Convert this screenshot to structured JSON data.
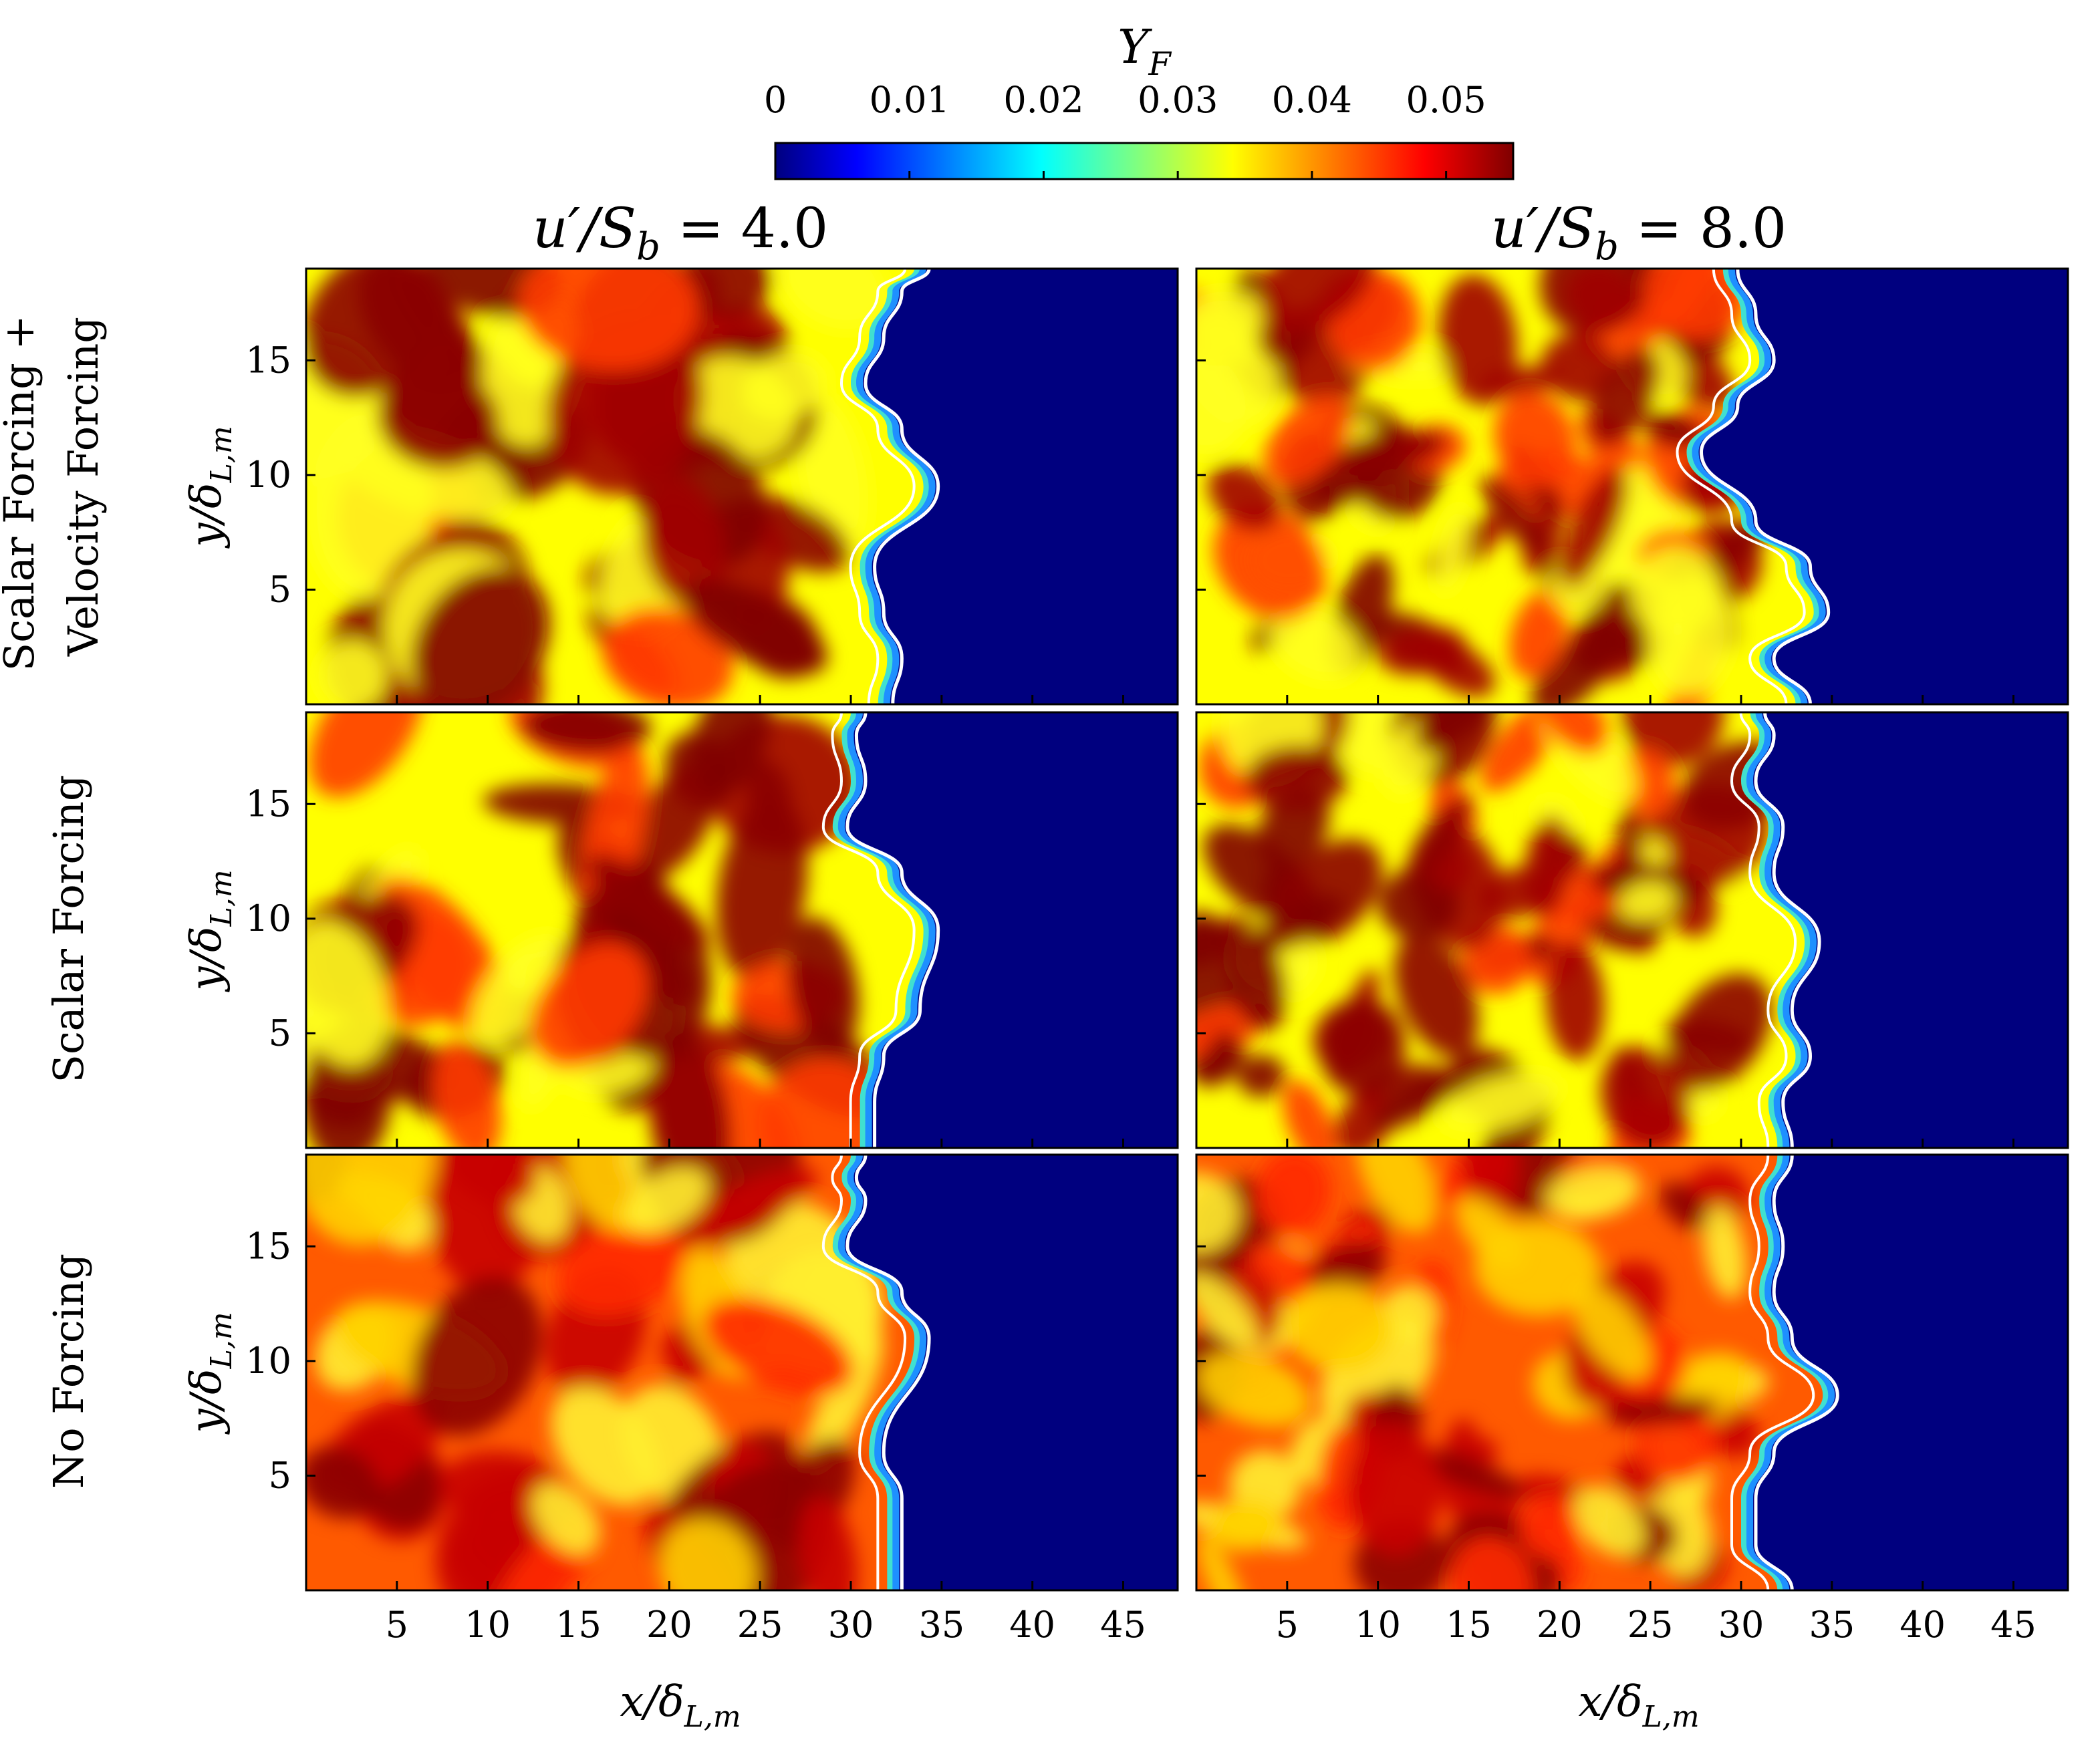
{
  "colorbar": {
    "label": "Y_F",
    "ticks": [
      "0",
      "0.01",
      "0.02",
      "0.03",
      "0.04",
      "0.05"
    ],
    "colormap": "jet",
    "colors": [
      "#00007f",
      "#0000ff",
      "#00ffff",
      "#ffff00",
      "#ff0000",
      "#7f0000"
    ]
  },
  "columns": [
    {
      "title": "u′/S_b = 4.0",
      "title_main": "u′/S",
      "title_sub": "b",
      "title_rest": " = 4.0",
      "u_rms": 4.0
    },
    {
      "title": "u′/S_b = 8.0",
      "title_main": "u′/S",
      "title_sub": "b",
      "title_rest": " = 8.0",
      "u_rms": 8.0
    }
  ],
  "rows": [
    {
      "label_line1": "Scalar Forcing +",
      "label_line2": "Velocity Forcing"
    },
    {
      "label_line1": "Scalar Forcing",
      "label_line2": ""
    },
    {
      "label_line1": "No Forcing",
      "label_line2": ""
    }
  ],
  "axes": {
    "xlabel_main": "x/δ",
    "xlabel_sub": "L,m",
    "ylabel_main": "y/δ",
    "ylabel_sub": "L,m",
    "xticks": [
      "5",
      "10",
      "15",
      "20",
      "25",
      "30",
      "35",
      "40",
      "45"
    ],
    "yticks": [
      "5",
      "10",
      "15"
    ]
  },
  "chart_data": {
    "type": "heatmap",
    "quantity": "Y_F",
    "colormap": "jet",
    "clim": [
      0,
      0.055
    ],
    "xlim": [
      0,
      48
    ],
    "ylim": [
      0,
      19
    ],
    "contour_color": "#ffffff",
    "panels": [
      {
        "row": 0,
        "col": 0,
        "front_x": [
          31.5,
          32,
          31,
          30.5,
          34,
          32,
          30,
          31,
          32,
          33.5
        ],
        "front_y": [
          0,
          2,
          4,
          6,
          9.5,
          12,
          14,
          16,
          18,
          19
        ]
      },
      {
        "row": 0,
        "col": 1,
        "front_x": [
          33,
          31,
          34,
          33,
          30,
          27,
          29,
          31,
          30,
          29
        ],
        "front_y": [
          0,
          2,
          4,
          6,
          8,
          11,
          13,
          15,
          17,
          19
        ]
      },
      {
        "row": 1,
        "col": 0,
        "front_x": [
          30.5,
          30.5,
          31,
          33,
          34,
          32,
          29,
          30,
          29.5,
          30
        ],
        "front_y": [
          0,
          2,
          4,
          6,
          9.5,
          12,
          14,
          16,
          18,
          19
        ]
      },
      {
        "row": 1,
        "col": 1,
        "front_x": [
          32,
          31.5,
          33,
          32,
          33.5,
          31,
          31.5,
          30,
          31,
          30.5
        ],
        "front_y": [
          0,
          2,
          4,
          6,
          9,
          12,
          14,
          16,
          18,
          19
        ]
      },
      {
        "row": 2,
        "col": 0,
        "front_x": [
          32,
          32,
          32,
          31,
          33.5,
          32,
          29,
          30,
          29.5,
          30
        ],
        "front_y": [
          0,
          2,
          4,
          6,
          11,
          13,
          15,
          17,
          18,
          19
        ]
      },
      {
        "row": 2,
        "col": 1,
        "front_x": [
          32,
          30,
          30,
          31,
          34.5,
          32,
          31,
          31.5,
          31,
          32
        ],
        "front_y": [
          0,
          2,
          4,
          6,
          8.5,
          11,
          13,
          15,
          17,
          19
        ]
      }
    ]
  }
}
